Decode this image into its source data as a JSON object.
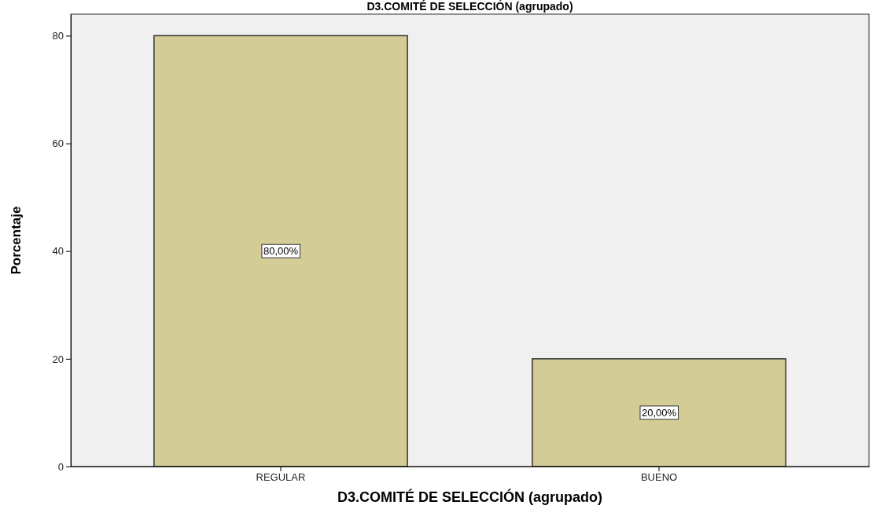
{
  "chart_data": {
    "type": "bar",
    "title": "D3.COMITÉ DE SELECCIÓN (agrupado)",
    "xlabel": "D3.COMITÉ DE SELECCIÓN (agrupado)",
    "ylabel": "Porcentaje",
    "categories": [
      "REGULAR",
      "BUENO"
    ],
    "values": [
      80,
      20
    ],
    "value_labels": [
      "80,00%",
      "20,00%"
    ],
    "color": "#d3cc96",
    "ylim": [
      0,
      84
    ],
    "yticks": [
      0,
      20,
      40,
      60,
      80
    ],
    "grid": false
  }
}
